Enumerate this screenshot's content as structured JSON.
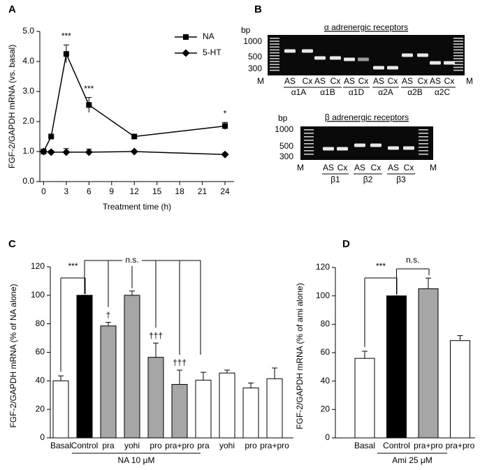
{
  "chart_data": [
    {
      "type": "line",
      "label": "A",
      "ylabel": "FGF-2/GAPDH mRNA (vs. basal)",
      "xlabel": "Treatment time (h)",
      "x": [
        0,
        1,
        3,
        6,
        12,
        24
      ],
      "xlim": [
        -0.5,
        25.2
      ],
      "xticks": [
        0,
        3,
        6,
        9,
        12,
        15,
        18,
        21,
        24
      ],
      "ylim": [
        0,
        5
      ],
      "yticks": [
        {
          "value": 0,
          "label": "0.0"
        },
        {
          "value": 1,
          "label": "1.0"
        },
        {
          "value": 2,
          "label": "2.0"
        },
        {
          "value": 3,
          "label": "3.0"
        },
        {
          "value": 4,
          "label": "4.0"
        },
        {
          "value": 5,
          "label": "5.0"
        }
      ],
      "legend": "upper right",
      "series": [
        {
          "name": "NA",
          "color": "#000000",
          "marker": "square",
          "values": [
            1.0,
            1.5,
            4.25,
            2.55,
            1.5,
            1.85
          ],
          "errors": [
            0,
            0,
            0.3,
            0.25,
            0,
            0.12
          ],
          "point_labels": [
            null,
            null,
            "***",
            "***",
            null,
            "*"
          ]
        },
        {
          "name": "5-HT",
          "color": "#000000",
          "marker": "diamond",
          "values": [
            1.0,
            0.98,
            0.98,
            0.98,
            1.0,
            0.9
          ],
          "errors": [
            0,
            0.05,
            0.12,
            0.1,
            0,
            0.05
          ]
        }
      ]
    },
    {
      "type": "bar",
      "label": "C",
      "ylabel": "FGF-2/GAPDH mRNA (% of NA alone)",
      "categories": [
        "Basal",
        "Control",
        "pra",
        "yohi",
        "pro",
        "pra+pro",
        "pra",
        "yohi",
        "pro",
        "pra+pro"
      ],
      "values": [
        40,
        100,
        78.5,
        100,
        56.5,
        37.5,
        40.5,
        45.5,
        35,
        41.5
      ],
      "errors": [
        3.5,
        0,
        2.5,
        3,
        10,
        10,
        5.5,
        2,
        3.5,
        7.5
      ],
      "colors": [
        "#ffffff",
        "#000000",
        "#a6a6a6",
        "#a6a6a6",
        "#a6a6a6",
        "#a6a6a6",
        "#ffffff",
        "#ffffff",
        "#ffffff",
        "#ffffff"
      ],
      "bar_labels": [
        null,
        null,
        "†",
        null,
        "†††",
        "†††",
        null,
        null,
        null,
        null
      ],
      "brackets": [
        "***",
        "n.s."
      ],
      "group": "NA 10 μM",
      "ylim": [
        0,
        120
      ],
      "yticks": [
        0,
        20,
        40,
        60,
        80,
        100,
        120
      ]
    },
    {
      "type": "bar",
      "label": "D",
      "ylabel": "FGF-2/GAPDH mRNA (% of ami alone)",
      "categories": [
        "Basal",
        "Control",
        "pra+pro",
        "pra+pro"
      ],
      "values": [
        56,
        100,
        105,
        68.5
      ],
      "errors": [
        5,
        0,
        7.5,
        3.5
      ],
      "colors": [
        "#ffffff",
        "#000000",
        "#a6a6a6",
        "#ffffff"
      ],
      "brackets": [
        "***",
        "n.s."
      ],
      "group": "Ami 25 μM",
      "ylim": [
        0,
        120
      ],
      "yticks": [
        0,
        20,
        40,
        60,
        80,
        100,
        120
      ]
    }
  ],
  "gel_panel": {
    "label": "B",
    "gels": [
      {
        "title": "α adrenergic receptors",
        "size_label": "bp",
        "sizes": [
          "1000",
          "500",
          "300"
        ],
        "lanes": [
          "M",
          "AS",
          "Cx",
          "AS",
          "Cx",
          "AS",
          "Cx",
          "AS",
          "Cx",
          "AS",
          "Cx",
          "AS",
          "Cx",
          "M"
        ],
        "groups": [
          "α1A",
          "α1B",
          "α1D",
          "α2A",
          "α2B",
          "α2C"
        ]
      },
      {
        "title": "β adrenergic receptors",
        "size_label": "bp",
        "sizes": [
          "1000",
          "500",
          "300"
        ],
        "lanes": [
          "M",
          "AS",
          "Cx",
          "AS",
          "Cx",
          "AS",
          "Cx",
          "M"
        ],
        "groups": [
          "β1",
          "β2",
          "β3"
        ]
      }
    ]
  }
}
